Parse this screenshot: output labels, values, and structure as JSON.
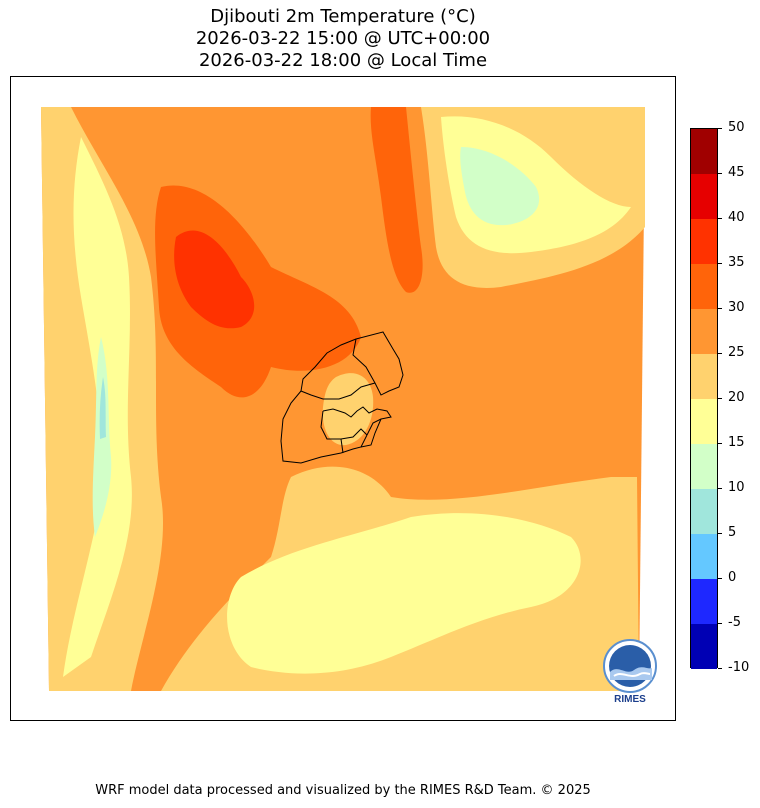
{
  "title": {
    "line1": "Djibouti 2m Temperature (°C)",
    "line2": "2026-03-22 15:00 @ UTC+00:00",
    "line3": "2026-03-22 18:00 @ Local Time"
  },
  "colorbar": {
    "levels": [
      -10,
      -5,
      0,
      5,
      10,
      15,
      20,
      25,
      30,
      35,
      40,
      45,
      50
    ],
    "tick_labels": [
      "-10",
      "-5",
      "0",
      "5",
      "10",
      "15",
      "20",
      "25",
      "30",
      "35",
      "40",
      "45",
      "50"
    ],
    "colors": [
      "#0000b4",
      "#1e28ff",
      "#64c8ff",
      "#a0e6dc",
      "#d2ffc8",
      "#ffff96",
      "#ffd26e",
      "#ff9632",
      "#ff640a",
      "#ff3200",
      "#e60000",
      "#a00000"
    ]
  },
  "logo": {
    "text": "RIMES"
  },
  "footer": {
    "credit": "WRF model data processed and visualized by the RIMES R&D Team. © 2025"
  }
}
